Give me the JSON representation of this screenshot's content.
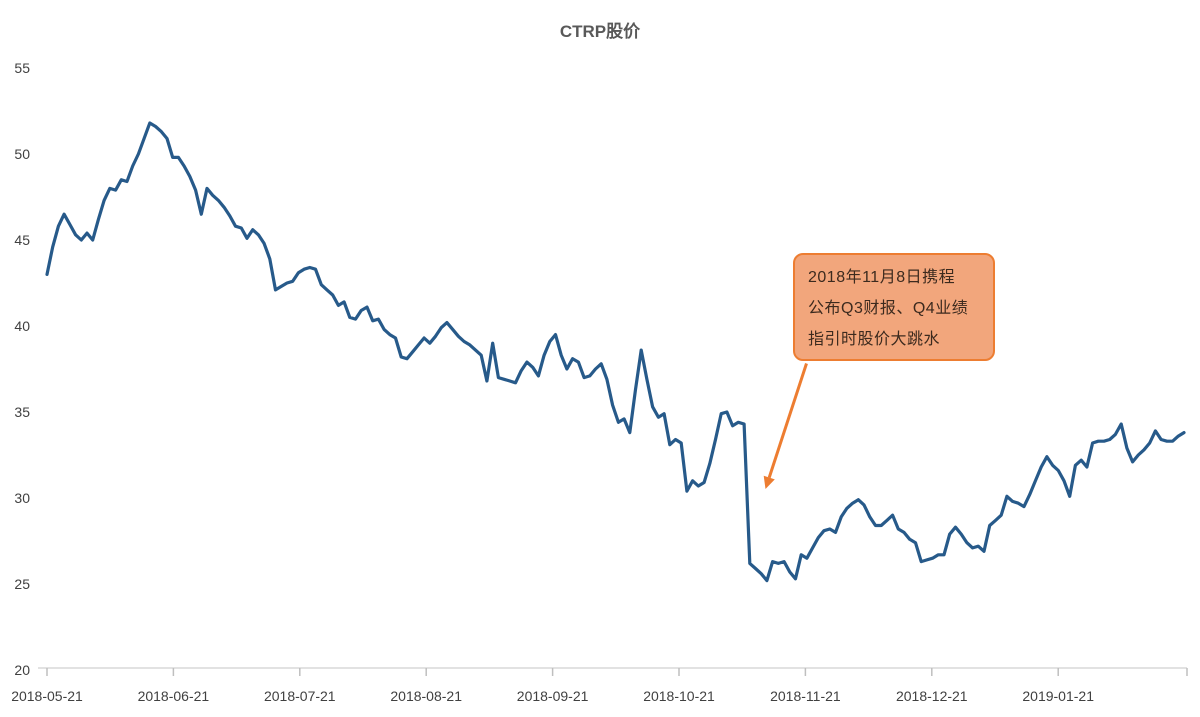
{
  "chart_data": {
    "type": "line",
    "title": "CTRP股价",
    "x_axis": {
      "tick_labels": [
        "2018-05-21",
        "2018-06-21",
        "2018-07-21",
        "2018-08-21",
        "2018-09-21",
        "2018-10-21",
        "2018-11-21",
        "2018-12-21",
        "2019-01-21"
      ],
      "unit": "trading day",
      "start_date": "2018-05-21"
    },
    "y_axis": {
      "ticks": [
        55,
        50,
        45,
        40,
        35,
        30,
        25,
        20
      ],
      "min": 20,
      "max": 55
    },
    "series": [
      {
        "name": "CTRP股价",
        "values": [
          43.0,
          44.6,
          45.8,
          46.5,
          45.9,
          45.3,
          45.0,
          45.4,
          45.0,
          46.2,
          47.3,
          48.0,
          47.9,
          48.5,
          48.4,
          49.3,
          50.0,
          50.9,
          51.8,
          51.6,
          51.3,
          50.9,
          49.8,
          49.8,
          49.3,
          48.7,
          47.9,
          46.5,
          48.0,
          47.6,
          47.3,
          46.9,
          46.4,
          45.8,
          45.7,
          45.1,
          45.6,
          45.3,
          44.8,
          43.9,
          42.1,
          42.3,
          42.5,
          42.6,
          43.1,
          43.3,
          43.4,
          43.3,
          42.4,
          42.1,
          41.8,
          41.2,
          41.4,
          40.5,
          40.4,
          40.9,
          41.1,
          40.3,
          40.4,
          39.8,
          39.5,
          39.3,
          38.2,
          38.1,
          38.5,
          38.9,
          39.3,
          39.0,
          39.4,
          39.9,
          40.2,
          39.8,
          39.4,
          39.1,
          38.9,
          38.6,
          38.3,
          36.8,
          39.0,
          37.0,
          36.9,
          36.8,
          36.7,
          37.4,
          37.9,
          37.6,
          37.1,
          38.3,
          39.1,
          39.5,
          38.3,
          37.5,
          38.1,
          37.9,
          37.0,
          37.1,
          37.5,
          37.8,
          36.9,
          35.4,
          34.4,
          34.6,
          33.8,
          36.3,
          38.6,
          36.9,
          35.3,
          34.7,
          34.9,
          33.1,
          33.4,
          33.2,
          30.4,
          31.0,
          30.7,
          30.9,
          32.0,
          33.4,
          34.9,
          35.0,
          34.2,
          34.4,
          34.3,
          26.2,
          25.9,
          25.6,
          25.2,
          26.3,
          26.2,
          26.3,
          25.7,
          25.3,
          26.7,
          26.5,
          27.1,
          27.7,
          28.1,
          28.2,
          28.0,
          28.9,
          29.4,
          29.7,
          29.9,
          29.6,
          28.9,
          28.4,
          28.4,
          28.7,
          29.0,
          28.2,
          28.0,
          27.6,
          27.4,
          26.3,
          26.4,
          26.5,
          26.7,
          26.7,
          27.9,
          28.3,
          27.9,
          27.4,
          27.1,
          27.2,
          26.9,
          28.4,
          28.7,
          29.0,
          30.1,
          29.8,
          29.7,
          29.5,
          30.2,
          31.0,
          31.8,
          32.4,
          31.9,
          31.6,
          31.0,
          30.1,
          31.9,
          32.2,
          31.8,
          33.2,
          33.3,
          33.3,
          33.4,
          33.7,
          34.3,
          32.9,
          32.1,
          32.5,
          32.8,
          33.2,
          33.9,
          33.4,
          33.3,
          33.3,
          33.6,
          33.8
        ]
      }
    ],
    "annotation": {
      "lines": [
        "2018年11月8日携程",
        "公布Q3财报、Q4业绩",
        "指引时股价大跳水"
      ],
      "fill_color": "#F2A67C",
      "border_color": "#ED7D31",
      "text_color": "#3C2A1E",
      "arrow_color": "#ED7D31"
    },
    "colors": {
      "line": "#275A8A",
      "title_text": "#595959",
      "axis_label_text": "#404040",
      "axis_line": "#D9D9D9",
      "axis_tick": "#BFBFBF"
    },
    "legend": {
      "visible": false
    },
    "grid": {
      "visible": false
    }
  }
}
